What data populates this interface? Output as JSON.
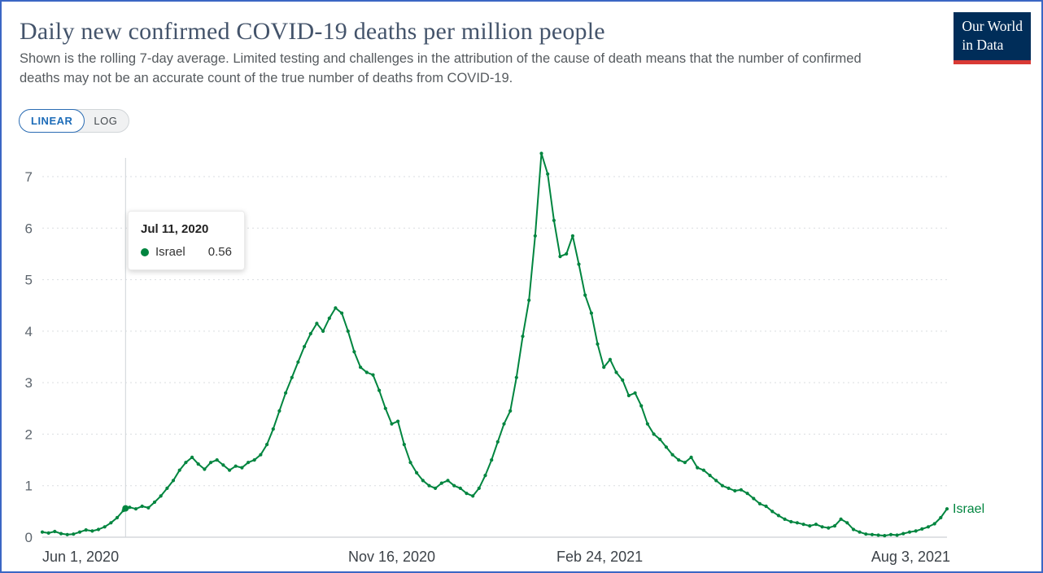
{
  "header": {
    "title": "Daily new confirmed COVID-19 deaths per million people",
    "subtitle": "Shown is the rolling 7-day average. Limited testing and challenges in the attribution of the cause of death means that the number of confirmed deaths may not be an accurate count of the true number of deaths from COVID-19.",
    "logo": {
      "line1": "Our World",
      "line2": "in Data"
    }
  },
  "controls": {
    "scale_options": [
      {
        "label": "LINEAR",
        "selected": true
      },
      {
        "label": "LOG",
        "selected": false
      }
    ]
  },
  "tooltip": {
    "date": "Jul 11, 2020",
    "series": "Israel",
    "value": "0.56"
  },
  "colors": {
    "series_green": "#00853f",
    "accent_blue": "#1d6cb8",
    "logo_navy": "#002d59",
    "logo_red": "#d93a35",
    "frame_blue": "#3b66c4"
  },
  "chart_data": {
    "type": "line",
    "title": "Daily new confirmed COVID-19 deaths per million people",
    "unit": "deaths per million (7-day rolling average)",
    "xlabel": "",
    "ylabel": "",
    "grid": "horizontal-dashed",
    "legend": "end-label",
    "y_axis": {
      "ticks": [
        0,
        1,
        2,
        3,
        4,
        5,
        6,
        7
      ],
      "range": [
        0,
        7.6
      ]
    },
    "x_axis": {
      "ticks": [
        {
          "label": "Jun 1, 2020",
          "date": "2020-06-01"
        },
        {
          "label": "Nov 16, 2020",
          "date": "2020-11-16"
        },
        {
          "label": "Feb 24, 2021",
          "date": "2021-02-24"
        },
        {
          "label": "Aug 3, 2021",
          "date": "2021-08-03"
        }
      ]
    },
    "highlight_point": {
      "date": "2020-07-11",
      "value": 0.56,
      "label": "Jul 11, 2020"
    },
    "series": [
      {
        "name": "Israel",
        "color": "#00853f",
        "start_date": "2020-06-01",
        "step_days": 3,
        "values": [
          0.1,
          0.08,
          0.11,
          0.07,
          0.05,
          0.06,
          0.1,
          0.14,
          0.12,
          0.15,
          0.2,
          0.28,
          0.38,
          0.52,
          0.58,
          0.55,
          0.6,
          0.57,
          0.68,
          0.8,
          0.95,
          1.1,
          1.3,
          1.45,
          1.55,
          1.42,
          1.32,
          1.45,
          1.5,
          1.4,
          1.3,
          1.38,
          1.35,
          1.45,
          1.5,
          1.6,
          1.8,
          2.1,
          2.45,
          2.8,
          3.1,
          3.4,
          3.7,
          3.95,
          4.15,
          4.0,
          4.25,
          4.45,
          4.35,
          4.0,
          3.6,
          3.3,
          3.2,
          3.15,
          2.85,
          2.5,
          2.2,
          2.25,
          1.8,
          1.45,
          1.25,
          1.1,
          1.0,
          0.95,
          1.05,
          1.1,
          1.0,
          0.95,
          0.85,
          0.8,
          0.95,
          1.2,
          1.5,
          1.85,
          2.2,
          2.45,
          3.1,
          3.9,
          4.6,
          5.85,
          7.45,
          7.05,
          6.15,
          5.45,
          5.5,
          5.85,
          5.3,
          4.7,
          4.35,
          3.75,
          3.3,
          3.45,
          3.2,
          3.05,
          2.75,
          2.8,
          2.55,
          2.2,
          2.0,
          1.9,
          1.75,
          1.6,
          1.5,
          1.45,
          1.55,
          1.35,
          1.3,
          1.2,
          1.1,
          1.0,
          0.95,
          0.9,
          0.92,
          0.85,
          0.75,
          0.65,
          0.6,
          0.5,
          0.42,
          0.35,
          0.3,
          0.28,
          0.25,
          0.22,
          0.25,
          0.2,
          0.18,
          0.22,
          0.35,
          0.28,
          0.15,
          0.1,
          0.06,
          0.05,
          0.04,
          0.03,
          0.05,
          0.04,
          0.07,
          0.1,
          0.12,
          0.16,
          0.2,
          0.26,
          0.38,
          0.55
        ]
      }
    ]
  }
}
